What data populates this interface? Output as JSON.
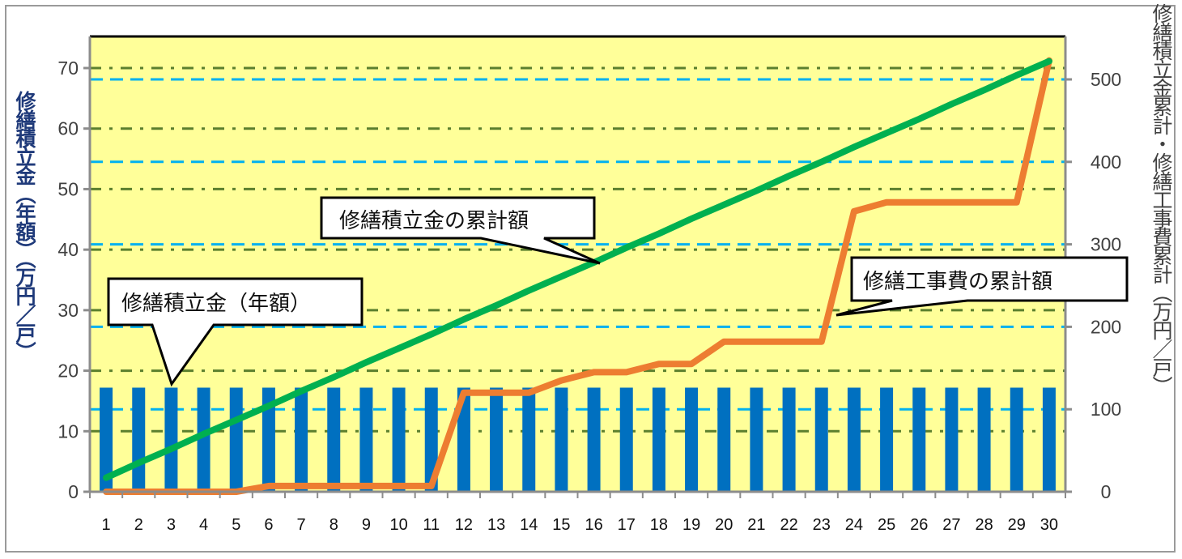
{
  "chart_data": {
    "type": "bar+line",
    "title": "",
    "categories": [
      1,
      2,
      3,
      4,
      5,
      6,
      7,
      8,
      9,
      10,
      11,
      12,
      13,
      14,
      15,
      16,
      17,
      18,
      19,
      20,
      21,
      22,
      23,
      24,
      25,
      26,
      27,
      28,
      29,
      30
    ],
    "xlabel": "",
    "ylabel_left": "修繕積立金（年額）（万円／戸）",
    "ylabel_right": "修繕積立金累計・修繕工事費累計（万円／戸）",
    "ylim_left": [
      0,
      75
    ],
    "ylim_right": [
      0,
      535
    ],
    "yticks_left": [
      0,
      10,
      20,
      30,
      40,
      50,
      60,
      70
    ],
    "yticks_right": [
      0,
      100,
      200,
      300,
      400,
      500
    ],
    "grid": true,
    "series": [
      {
        "name": "修繕積立金（年額）",
        "type": "bar",
        "axis": "left",
        "color": "#0070C0",
        "values": [
          17.2,
          17.2,
          17.2,
          17.2,
          17.2,
          17.2,
          17.2,
          17.2,
          17.2,
          17.2,
          17.2,
          17.2,
          17.2,
          17.2,
          17.2,
          17.2,
          17.2,
          17.2,
          17.2,
          17.2,
          17.2,
          17.2,
          17.2,
          17.2,
          17.2,
          17.2,
          17.2,
          17.2,
          17.2,
          17.2
        ]
      },
      {
        "name": "修繕積立金の累計額",
        "type": "line",
        "axis": "right",
        "color": "#00B050",
        "values": [
          17,
          35,
          52,
          70,
          87,
          104,
          122,
          139,
          157,
          174,
          191,
          209,
          226,
          244,
          261,
          278,
          296,
          313,
          331,
          348,
          365,
          383,
          400,
          418,
          435,
          452,
          470,
          487,
          505,
          522
        ]
      },
      {
        "name": "修繕工事費の累計額",
        "type": "line",
        "axis": "right",
        "color": "#ED7D31",
        "values": [
          0,
          0,
          0,
          0,
          0,
          7,
          7,
          7,
          7,
          7,
          7,
          120,
          120,
          120,
          135,
          145,
          145,
          155,
          155,
          182,
          182,
          182,
          182,
          340,
          351,
          351,
          351,
          351,
          351,
          523
        ]
      }
    ],
    "annotations": [
      {
        "text": "修繕積立金の累計額",
        "target_series": "修繕積立金の累計額",
        "target_x": 16
      },
      {
        "text": "修繕積立金（年額）",
        "target_series": "修繕積立金（年額）",
        "target_x": 3
      },
      {
        "text": "修繕工事費の累計額",
        "target_series": "修繕工事費の累計額",
        "target_x": 23.5
      }
    ]
  },
  "axes": {
    "left_title": "修繕積立金（年額）（万円／戸）",
    "right_title": "修繕積立金累計・修繕工事費累計（万円／戸）"
  },
  "callouts": {
    "cumulative_reserve": "修繕積立金の累計額",
    "annual_reserve": "修繕積立金（年額）",
    "cumulative_repair": "修繕工事費の累計額"
  },
  "colors": {
    "plot_bg": "#FFFF99",
    "bar": "#0070C0",
    "green_line": "#00B050",
    "orange_line": "#ED7D31",
    "grid_left": "#5B7F2E",
    "grid_right": "#00B0F0"
  }
}
